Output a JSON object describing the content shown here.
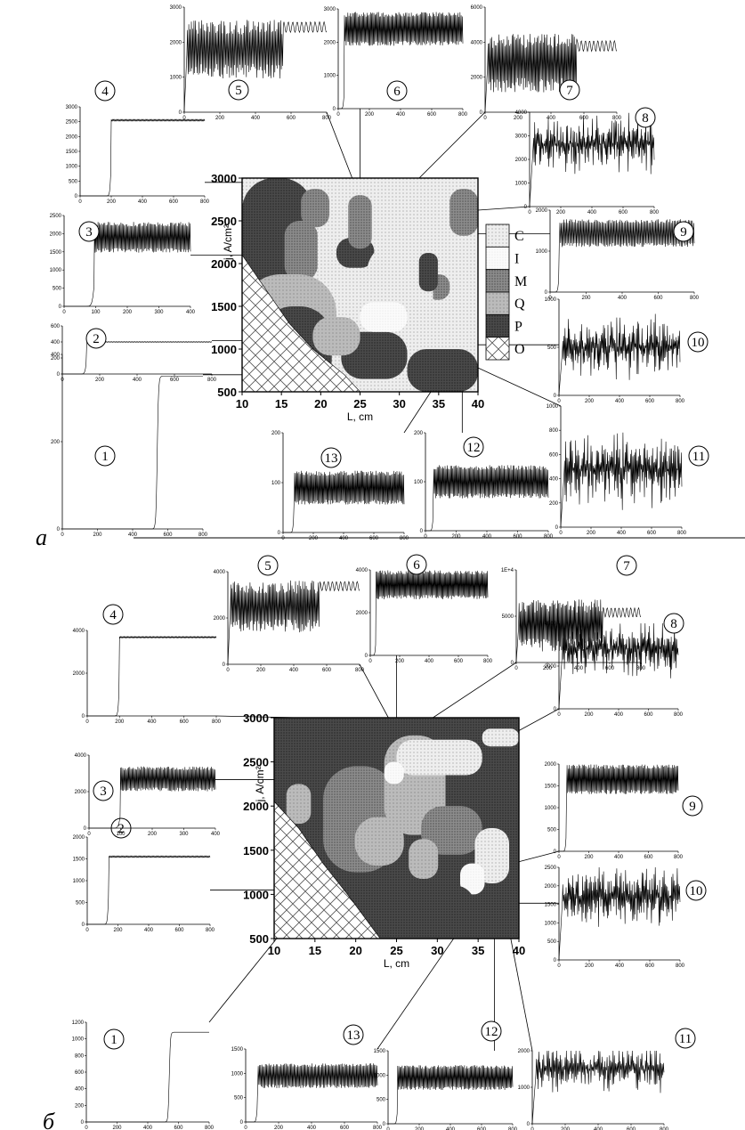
{
  "panel_a_letter": "a",
  "panel_b_letter": "б",
  "chart_data": [
    {
      "type": "heatmap",
      "panel": "a",
      "xlabel": "L, cm",
      "ylabel": "j, A/cm²",
      "x_ticks": [
        "10",
        "15",
        "20",
        "25",
        "30",
        "35",
        "40"
      ],
      "y_ticks": [
        "500",
        "1000",
        "1500",
        "2000",
        "2500",
        "3000"
      ],
      "xlim": [
        10,
        40
      ],
      "ylim": [
        500,
        3000
      ],
      "legend": [
        "C",
        "I",
        "M",
        "Q",
        "P",
        "O"
      ],
      "insets": [
        {
          "label": "1",
          "point": [
            16,
            700
          ],
          "x_ticks": [
            "0",
            "200",
            "400",
            "600",
            "800"
          ],
          "y_ticks": [
            "0",
            "200",
            "400"
          ],
          "xmax": 800,
          "ymax": 400,
          "type": "step",
          "step_x": 540,
          "level": 350
        },
        {
          "label": "2",
          "point": [
            19,
            1100
          ],
          "x_ticks": [
            "0",
            "200",
            "400",
            "600",
            "800"
          ],
          "y_ticks": [
            "0",
            "200",
            "400",
            "600"
          ],
          "xmax": 800,
          "ymax": 600,
          "type": "step_ripple",
          "step_x": 130,
          "level": 400
        },
        {
          "label": "3",
          "point": [
            14,
            2100
          ],
          "x_ticks": [
            "0",
            "100",
            "200",
            "300",
            "400"
          ],
          "y_ticks": [
            "0",
            "500",
            "1000",
            "1500",
            "2000",
            "2500"
          ],
          "xmax": 400,
          "ymax": 2500,
          "type": "step_osc",
          "step_x": 95,
          "level": 1900
        },
        {
          "label": "4",
          "point": [
            16,
            2950
          ],
          "x_ticks": [
            "0",
            "200",
            "400",
            "600",
            "800"
          ],
          "y_ticks": [
            "0",
            "500",
            "1000",
            "1500",
            "2000",
            "2500",
            "3000"
          ],
          "xmax": 800,
          "ymax": 3000,
          "type": "step_ripple",
          "step_x": 200,
          "level": 2550
        },
        {
          "label": "5",
          "point": [
            24,
            3000
          ],
          "x_ticks": [
            "0",
            "200",
            "400",
            "600",
            "800"
          ],
          "y_ticks": [
            "0",
            "1000",
            "2000",
            "3000"
          ],
          "xmax": 800,
          "ymax": 3000,
          "type": "osc_then_high",
          "level": 1800
        },
        {
          "label": "6",
          "point": [
            25,
            2600
          ],
          "x_ticks": [
            "0",
            "200",
            "400",
            "600",
            "800"
          ],
          "y_ticks": [
            "0",
            "1000",
            "2000",
            "3000"
          ],
          "xmax": 800,
          "ymax": 3000,
          "type": "step_osc",
          "step_x": 40,
          "level": 2400
        },
        {
          "label": "7",
          "point": [
            26,
            2400
          ],
          "x_ticks": [
            "0",
            "200",
            "400",
            "600",
            "800"
          ],
          "y_ticks": [
            "0",
            "2000",
            "4000",
            "6000"
          ],
          "xmax": 800,
          "ymax": 6000,
          "type": "osc_then_high",
          "level": 2800
        },
        {
          "label": "8",
          "point": [
            36,
            2600
          ],
          "x_ticks": [
            "0",
            "200",
            "400",
            "600",
            "800"
          ],
          "y_ticks": [
            "0",
            "1000",
            "2000",
            "3000",
            "4000"
          ],
          "xmax": 800,
          "ymax": 4500,
          "type": "osc",
          "level": 3000
        },
        {
          "label": "9",
          "point": [
            28,
            2350
          ],
          "x_ticks": [
            "0",
            "200",
            "400",
            "600",
            "800"
          ],
          "y_ticks": [
            "0",
            "1000",
            "2000"
          ],
          "xmax": 800,
          "ymax": 2500,
          "type": "step_osc",
          "step_x": 50,
          "level": 1800
        },
        {
          "label": "10",
          "point": [
            35,
            1050
          ],
          "x_ticks": [
            "0",
            "200",
            "400",
            "600",
            "800"
          ],
          "y_ticks": [
            "0",
            "500",
            "1000"
          ],
          "xmax": 800,
          "ymax": 1000,
          "type": "osc",
          "level": 500
        },
        {
          "label": "11",
          "point": [
            36,
            950
          ],
          "x_ticks": [
            "0",
            "200",
            "400",
            "600",
            "800"
          ],
          "y_ticks": [
            "0",
            "200",
            "400",
            "600",
            "800",
            "1000"
          ],
          "xmax": 800,
          "ymax": 1000,
          "type": "osc",
          "level": 480
        },
        {
          "label": "12",
          "point": [
            38,
            500
          ],
          "x_ticks": [
            "0",
            "200",
            "400",
            "600",
            "800"
          ],
          "y_ticks": [
            "0",
            "100",
            "200"
          ],
          "xmax": 800,
          "ymax": 200,
          "type": "step_osc",
          "step_x": 50,
          "level": 100
        },
        {
          "label": "13",
          "point": [
            34,
            500
          ],
          "x_ticks": [
            "0",
            "200",
            "400",
            "600",
            "800"
          ],
          "y_ticks": [
            "0",
            "100",
            "200"
          ],
          "xmax": 800,
          "ymax": 200,
          "type": "step_osc",
          "step_x": 70,
          "level": 90
        }
      ]
    },
    {
      "type": "heatmap",
      "panel": "б",
      "xlabel": "L, cm",
      "ylabel": "j, A/cm²",
      "x_ticks": [
        "10",
        "15",
        "20",
        "25",
        "30",
        "35",
        "40"
      ],
      "y_ticks": [
        "500",
        "1000",
        "1500",
        "2000",
        "2500",
        "3000"
      ],
      "xlim": [
        10,
        40
      ],
      "ylim": [
        500,
        3000
      ],
      "insets": [
        {
          "label": "1",
          "point": [
            11,
            580
          ],
          "x_ticks": [
            "0",
            "200",
            "400",
            "600",
            "800"
          ],
          "y_ticks": [
            "0",
            "200",
            "400",
            "600",
            "800",
            "1000",
            "1200"
          ],
          "xmax": 800,
          "ymax": 1200,
          "type": "step",
          "step_x": 540,
          "level": 1080
        },
        {
          "label": "2",
          "point": [
            14,
            1050
          ],
          "x_ticks": [
            "0",
            "200",
            "400",
            "600",
            "800"
          ],
          "y_ticks": [
            "0",
            "500",
            "1000",
            "1500",
            "2000"
          ],
          "xmax": 800,
          "ymax": 2000,
          "type": "step_ripple",
          "step_x": 140,
          "level": 1550
        },
        {
          "label": "3",
          "point": [
            19,
            2300
          ],
          "x_ticks": [
            "0",
            "100",
            "200",
            "300",
            "400"
          ],
          "y_ticks": [
            "0",
            "2000",
            "4000"
          ],
          "xmax": 400,
          "ymax": 4000,
          "type": "step_osc",
          "step_x": 100,
          "level": 2700
        },
        {
          "label": "4",
          "point": [
            13,
            3000
          ],
          "x_ticks": [
            "0",
            "200",
            "400",
            "600",
            "800"
          ],
          "y_ticks": [
            "0",
            "2000",
            "4000"
          ],
          "xmax": 800,
          "ymax": 5000,
          "type": "step_ripple",
          "step_x": 200,
          "level": 4600
        },
        {
          "label": "5",
          "point": [
            24,
            3000
          ],
          "x_ticks": [
            "0",
            "200",
            "400",
            "600",
            "800"
          ],
          "y_ticks": [
            "0",
            "2000",
            "4000"
          ],
          "xmax": 800,
          "ymax": 4000,
          "type": "osc_then_high",
          "level": 2500
        },
        {
          "label": "6",
          "point": [
            25,
            2900
          ],
          "x_ticks": [
            "0",
            "200",
            "400",
            "600",
            "800"
          ],
          "y_ticks": [
            "0",
            "2000",
            "4000"
          ],
          "xmax": 800,
          "ymax": 4000,
          "type": "step_osc",
          "step_x": 40,
          "level": 3300
        },
        {
          "label": "7",
          "point": [
            27,
            2850
          ],
          "x_ticks": [
            "0",
            "200",
            "400",
            "600",
            "800"
          ],
          "y_ticks": [
            "0",
            "5000",
            "1E+4"
          ],
          "xmax": 800,
          "ymax": 10000,
          "type": "osc_then_high",
          "level": 4000
        },
        {
          "label": "8",
          "point": [
            27,
            2200
          ],
          "x_ticks": [
            "0",
            "200",
            "400",
            "600",
            "800"
          ],
          "y_ticks": [
            "0",
            "2000",
            "4000"
          ],
          "xmax": 800,
          "ymax": 5000,
          "type": "osc",
          "level": 3500
        },
        {
          "label": "9",
          "point": [
            35,
            1250
          ],
          "x_ticks": [
            "0",
            "200",
            "400",
            "600",
            "800"
          ],
          "y_ticks": [
            "0",
            "500",
            "1000",
            "1500",
            "2000"
          ],
          "xmax": 800,
          "ymax": 2000,
          "type": "step_osc",
          "step_x": 50,
          "level": 1650
        },
        {
          "label": "10",
          "point": [
            36,
            900
          ],
          "x_ticks": [
            "0",
            "200",
            "400",
            "600",
            "800"
          ],
          "y_ticks": [
            "0",
            "500",
            "1000",
            "1500",
            "2000",
            "2500"
          ],
          "xmax": 800,
          "ymax": 2500,
          "type": "osc",
          "level": 1700
        },
        {
          "label": "11",
          "point": [
            39,
            500
          ],
          "x_ticks": [
            "0",
            "200",
            "400",
            "600",
            "800"
          ],
          "y_ticks": [
            "0",
            "1000",
            "2000"
          ],
          "xmax": 800,
          "ymax": 2000,
          "type": "osc",
          "level": 1500
        },
        {
          "label": "12",
          "point": [
            37,
            520
          ],
          "x_ticks": [
            "0",
            "200",
            "400",
            "600",
            "800"
          ],
          "y_ticks": [
            "0",
            "500",
            "1000",
            "1500"
          ],
          "xmax": 800,
          "ymax": 1500,
          "type": "step_osc",
          "step_x": 60,
          "level": 950
        },
        {
          "label": "13",
          "point": [
            32,
            500
          ],
          "x_ticks": [
            "0",
            "200",
            "400",
            "600",
            "800"
          ],
          "y_ticks": [
            "0",
            "500",
            "1000",
            "1500"
          ],
          "xmax": 800,
          "ymax": 1500,
          "type": "step_osc",
          "step_x": 70,
          "level": 950
        }
      ]
    }
  ]
}
